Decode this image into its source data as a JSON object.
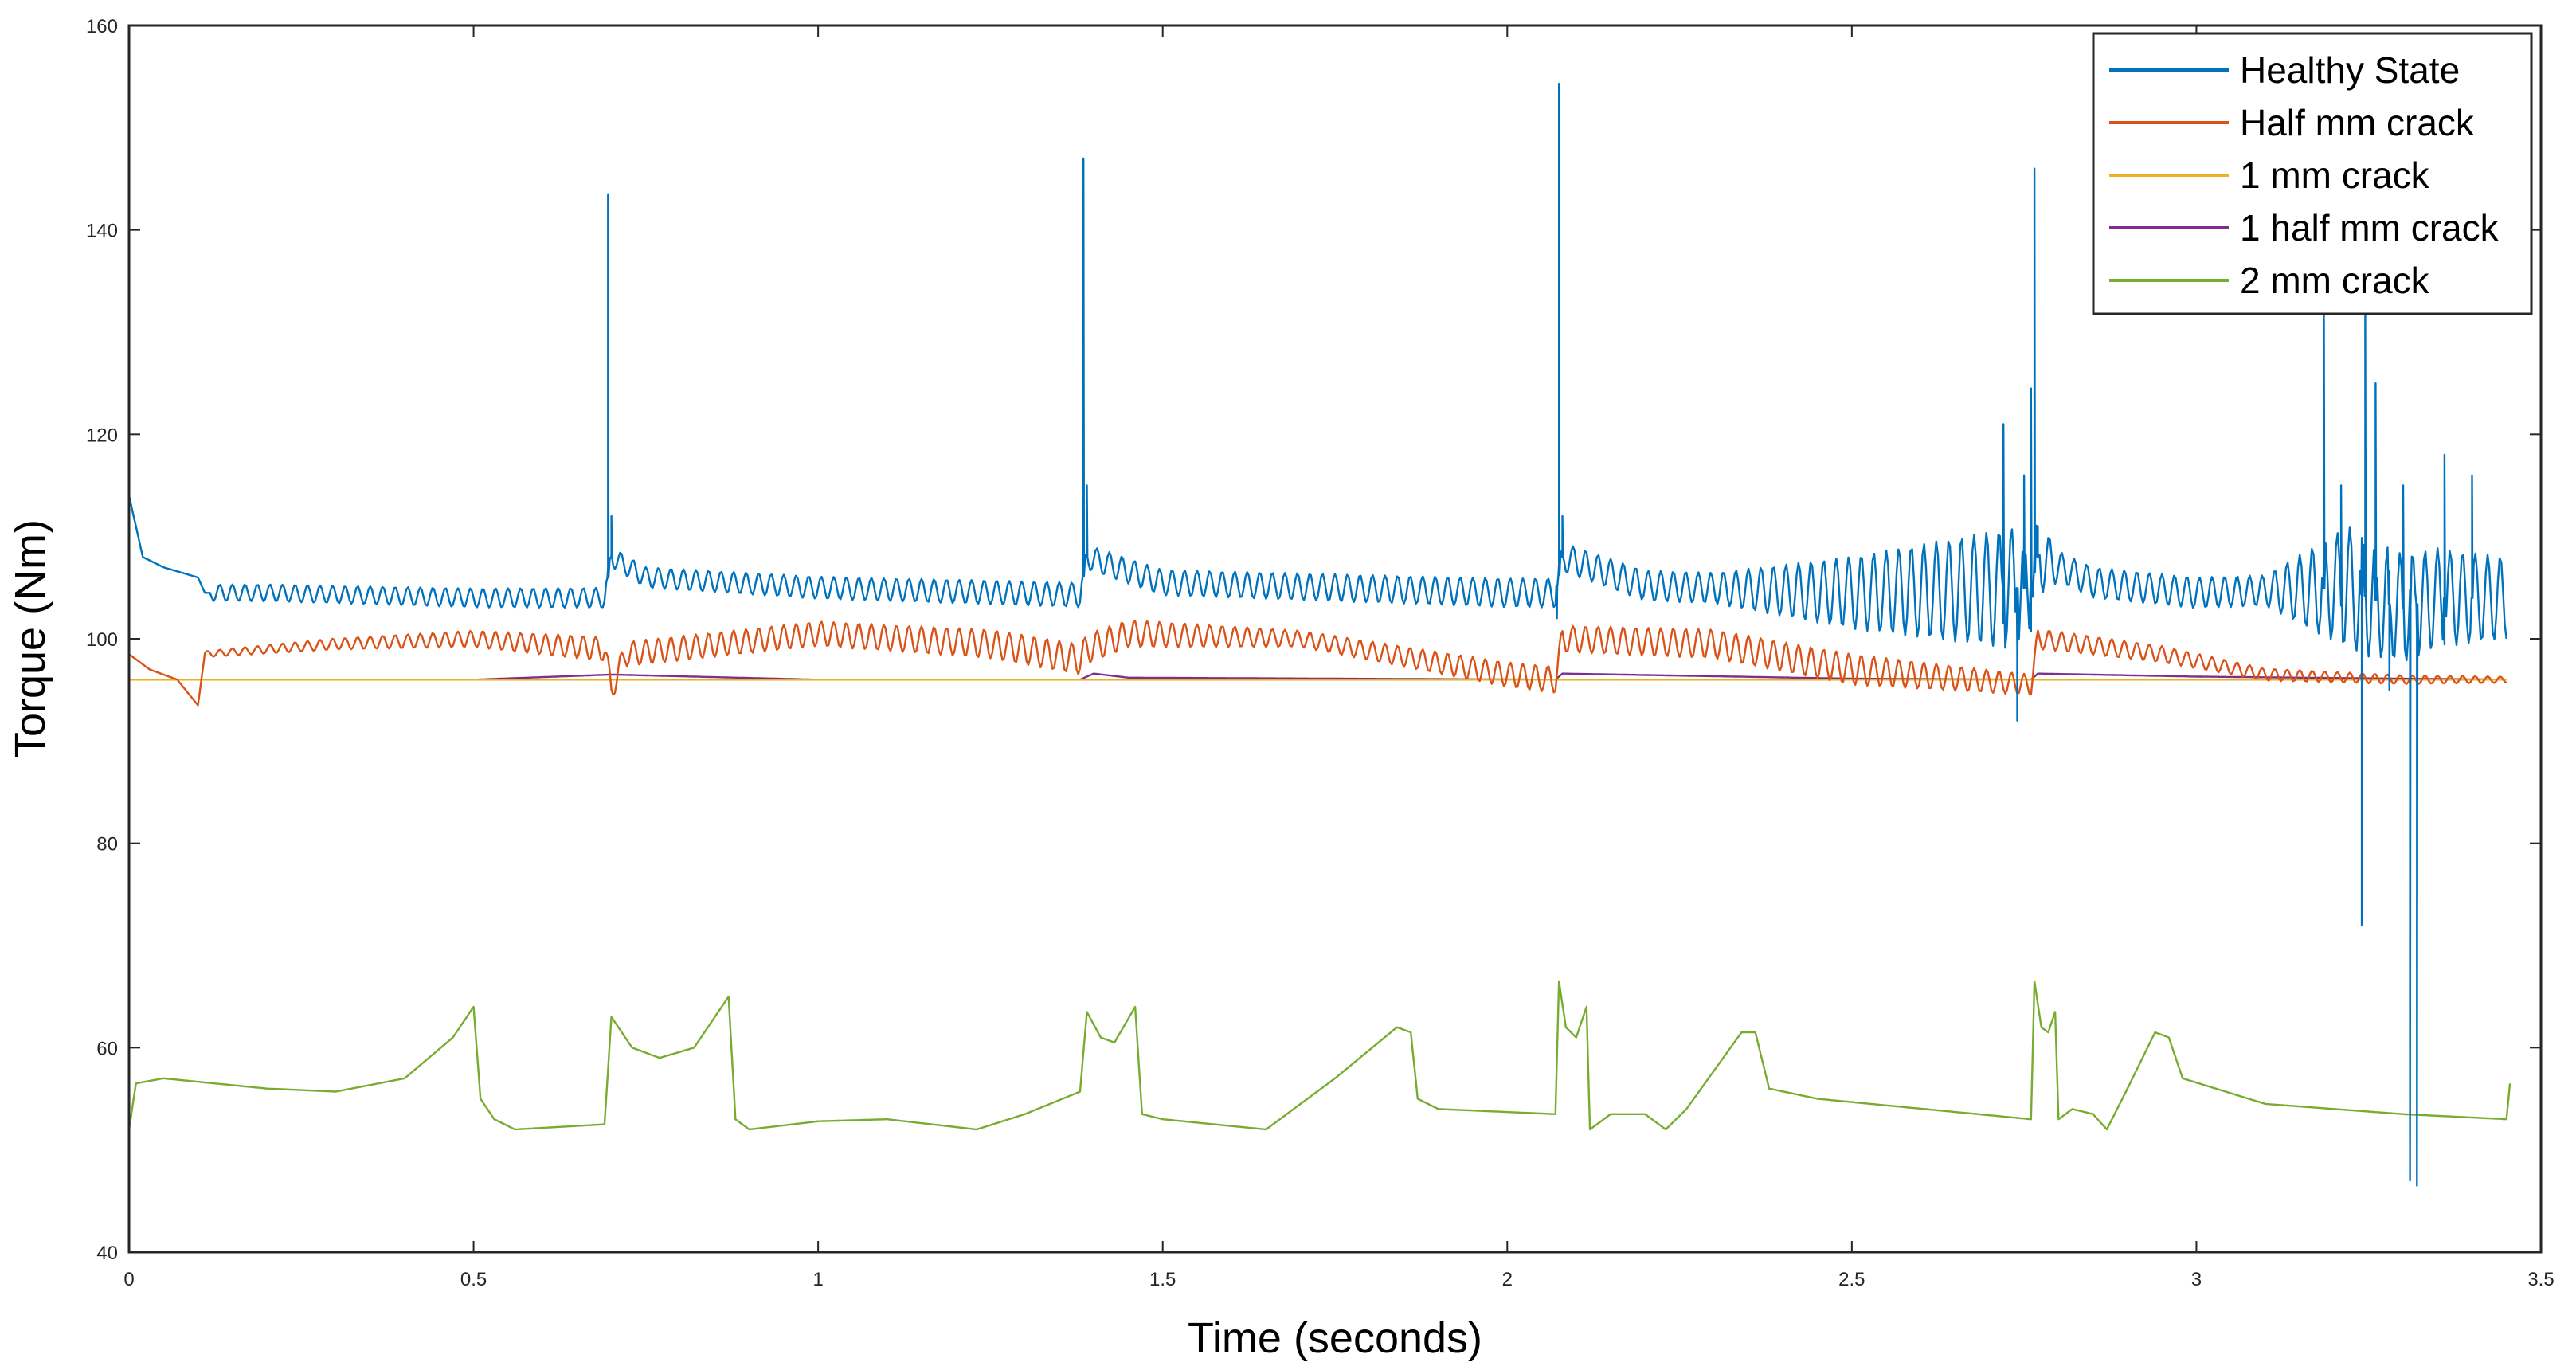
{
  "chart_data": {
    "type": "line",
    "title": "",
    "xlabel": "Time (seconds)",
    "ylabel": "Torque (Nm)",
    "xlim": [
      0,
      3.5
    ],
    "ylim": [
      40,
      160
    ],
    "xticks": [
      0,
      0.5,
      1,
      1.5,
      2,
      2.5,
      3,
      3.5
    ],
    "xtick_labels": [
      "0",
      "0.5",
      "1",
      "1.5",
      "2",
      "2.5",
      "3",
      "3.5"
    ],
    "yticks": [
      40,
      60,
      80,
      100,
      120,
      140,
      160
    ],
    "ytick_labels": [
      "40",
      "60",
      "80",
      "100",
      "120",
      "140",
      "160"
    ],
    "grid": false,
    "legend_position": "top-right",
    "series": [
      {
        "name": "Healthy State",
        "color": "#0072BD",
        "baseline": [
          [
            0,
            114
          ],
          [
            0.02,
            108
          ],
          [
            0.05,
            107
          ],
          [
            0.1,
            106
          ],
          [
            0.11,
            104.5
          ],
          [
            0.2,
            104.5
          ],
          [
            0.5,
            104
          ],
          [
            0.69,
            104
          ],
          [
            0.7,
            108
          ],
          [
            0.75,
            106
          ],
          [
            1.0,
            105
          ],
          [
            1.38,
            104.3
          ],
          [
            1.39,
            108
          ],
          [
            1.5,
            105.5
          ],
          [
            2.0,
            104.5
          ],
          [
            2.07,
            104.5
          ],
          [
            2.08,
            108
          ],
          [
            2.2,
            105.2
          ],
          [
            2.5,
            104.5
          ],
          [
            2.76,
            105
          ],
          [
            2.77,
            108
          ],
          [
            2.85,
            105.5
          ],
          [
            3.0,
            104.5
          ],
          [
            3.22,
            105
          ],
          [
            3.25,
            104
          ],
          [
            3.3,
            103
          ],
          [
            3.35,
            104
          ],
          [
            3.45,
            104
          ]
        ],
        "ripple": [
          [
            0.12,
            0.8
          ],
          [
            2.3,
            1.5
          ],
          [
            2.74,
            6
          ],
          [
            2.8,
            1.5
          ],
          [
            3.1,
            1.5
          ],
          [
            3.22,
            6
          ],
          [
            3.45,
            4
          ]
        ],
        "spikes": [
          [
            0.695,
            143.5
          ],
          [
            0.7,
            112
          ],
          [
            1.385,
            147
          ],
          [
            1.39,
            115
          ],
          [
            2.075,
            154.3
          ],
          [
            2.072,
            102
          ],
          [
            2.08,
            112
          ],
          [
            2.72,
            121
          ],
          [
            2.74,
            92
          ],
          [
            2.75,
            116
          ],
          [
            2.76,
            124.5
          ],
          [
            2.765,
            146
          ],
          [
            2.77,
            108
          ],
          [
            3.185,
            132
          ],
          [
            3.21,
            115
          ],
          [
            3.24,
            72
          ],
          [
            3.245,
            132
          ],
          [
            3.26,
            125
          ],
          [
            3.28,
            95
          ],
          [
            3.3,
            115
          ],
          [
            3.31,
            47
          ],
          [
            3.32,
            46.5
          ],
          [
            3.36,
            118
          ],
          [
            3.4,
            116
          ]
        ]
      },
      {
        "name": "Half mm crack",
        "color": "#D95319",
        "baseline": [
          [
            0,
            98.5
          ],
          [
            0.03,
            97
          ],
          [
            0.07,
            96
          ],
          [
            0.1,
            93.5
          ],
          [
            0.11,
            98.5
          ],
          [
            0.3,
            99.5
          ],
          [
            0.5,
            100
          ],
          [
            0.69,
            99
          ],
          [
            0.7,
            95
          ],
          [
            0.72,
            98.5
          ],
          [
            1.0,
            100.5
          ],
          [
            1.25,
            99.5
          ],
          [
            1.38,
            98
          ],
          [
            1.39,
            99
          ],
          [
            1.45,
            100.5
          ],
          [
            1.7,
            100
          ],
          [
            2.0,
            96.5
          ],
          [
            2.07,
            96
          ],
          [
            2.08,
            100
          ],
          [
            2.3,
            99.5
          ],
          [
            2.5,
            97
          ],
          [
            2.76,
            95.5
          ],
          [
            2.77,
            100
          ],
          [
            2.95,
            98.5
          ],
          [
            3.1,
            96.5
          ],
          [
            3.3,
            96
          ],
          [
            3.45,
            96
          ]
        ],
        "ripple": [
          [
            0.11,
            0.3
          ],
          [
            0.5,
            0.8
          ],
          [
            0.69,
            1.2
          ],
          [
            1.0,
            1.2
          ],
          [
            1.38,
            1.5
          ],
          [
            1.7,
            0.8
          ],
          [
            2.07,
            1.3
          ],
          [
            2.5,
            1.5
          ],
          [
            2.76,
            1.0
          ],
          [
            2.95,
            0.8
          ],
          [
            3.1,
            0.6
          ],
          [
            3.45,
            0.3
          ]
        ]
      },
      {
        "name": "1 mm crack",
        "color": "#EDB120",
        "baseline": [
          [
            0,
            96
          ],
          [
            0.5,
            96
          ],
          [
            1.0,
            96
          ],
          [
            1.5,
            96
          ],
          [
            2.0,
            96
          ],
          [
            2.5,
            96
          ],
          [
            3.0,
            96
          ],
          [
            3.45,
            96
          ]
        ],
        "ripple": []
      },
      {
        "name": "1 half mm crack",
        "color": "#7E2F8E",
        "baseline": [
          [
            0,
            96
          ],
          [
            0.5,
            96
          ],
          [
            0.7,
            96.5
          ],
          [
            1.0,
            96
          ],
          [
            1.38,
            96
          ],
          [
            1.4,
            96.6
          ],
          [
            1.45,
            96.2
          ],
          [
            2.07,
            96
          ],
          [
            2.08,
            96.6
          ],
          [
            2.5,
            96.1
          ],
          [
            2.76,
            96
          ],
          [
            2.77,
            96.6
          ],
          [
            3.0,
            96.3
          ],
          [
            3.45,
            96
          ]
        ],
        "ripple": []
      },
      {
        "name": "2 mm crack",
        "color": "#77AC30",
        "baseline": [
          [
            0,
            52
          ],
          [
            0.01,
            56.5
          ],
          [
            0.05,
            57
          ],
          [
            0.2,
            56
          ],
          [
            0.3,
            55.7
          ],
          [
            0.4,
            57
          ],
          [
            0.47,
            61
          ],
          [
            0.5,
            64
          ],
          [
            0.51,
            55
          ],
          [
            0.53,
            53
          ],
          [
            0.56,
            52
          ],
          [
            0.69,
            52.5
          ],
          [
            0.7,
            63
          ],
          [
            0.73,
            60
          ],
          [
            0.77,
            59
          ],
          [
            0.82,
            60
          ],
          [
            0.87,
            65
          ],
          [
            0.88,
            53
          ],
          [
            0.9,
            52
          ],
          [
            1.0,
            52.8
          ],
          [
            1.1,
            53
          ],
          [
            1.23,
            52
          ],
          [
            1.3,
            53.5
          ],
          [
            1.38,
            55.7
          ],
          [
            1.39,
            63.5
          ],
          [
            1.41,
            61
          ],
          [
            1.43,
            60.5
          ],
          [
            1.46,
            64
          ],
          [
            1.47,
            53.5
          ],
          [
            1.5,
            53
          ],
          [
            1.65,
            52
          ],
          [
            1.75,
            57
          ],
          [
            1.84,
            62
          ],
          [
            1.86,
            61.5
          ],
          [
            1.87,
            55
          ],
          [
            1.9,
            54
          ],
          [
            2.07,
            53.5
          ],
          [
            2.075,
            66.5
          ],
          [
            2.085,
            62
          ],
          [
            2.1,
            61
          ],
          [
            2.115,
            64
          ],
          [
            2.12,
            52
          ],
          [
            2.15,
            53.5
          ],
          [
            2.2,
            53.5
          ],
          [
            2.23,
            52
          ],
          [
            2.26,
            54
          ],
          [
            2.34,
            61.5
          ],
          [
            2.36,
            61.5
          ],
          [
            2.38,
            56
          ],
          [
            2.45,
            55
          ],
          [
            2.76,
            53
          ],
          [
            2.765,
            66.5
          ],
          [
            2.775,
            62
          ],
          [
            2.785,
            61.5
          ],
          [
            2.795,
            63.5
          ],
          [
            2.8,
            53
          ],
          [
            2.82,
            54
          ],
          [
            2.85,
            53.5
          ],
          [
            2.87,
            52
          ],
          [
            2.9,
            56
          ],
          [
            2.94,
            61.5
          ],
          [
            2.96,
            61
          ],
          [
            2.98,
            57
          ],
          [
            3.1,
            54.5
          ],
          [
            3.3,
            53.5
          ],
          [
            3.45,
            53
          ],
          [
            3.455,
            56.5
          ]
        ],
        "ripple": []
      }
    ]
  }
}
